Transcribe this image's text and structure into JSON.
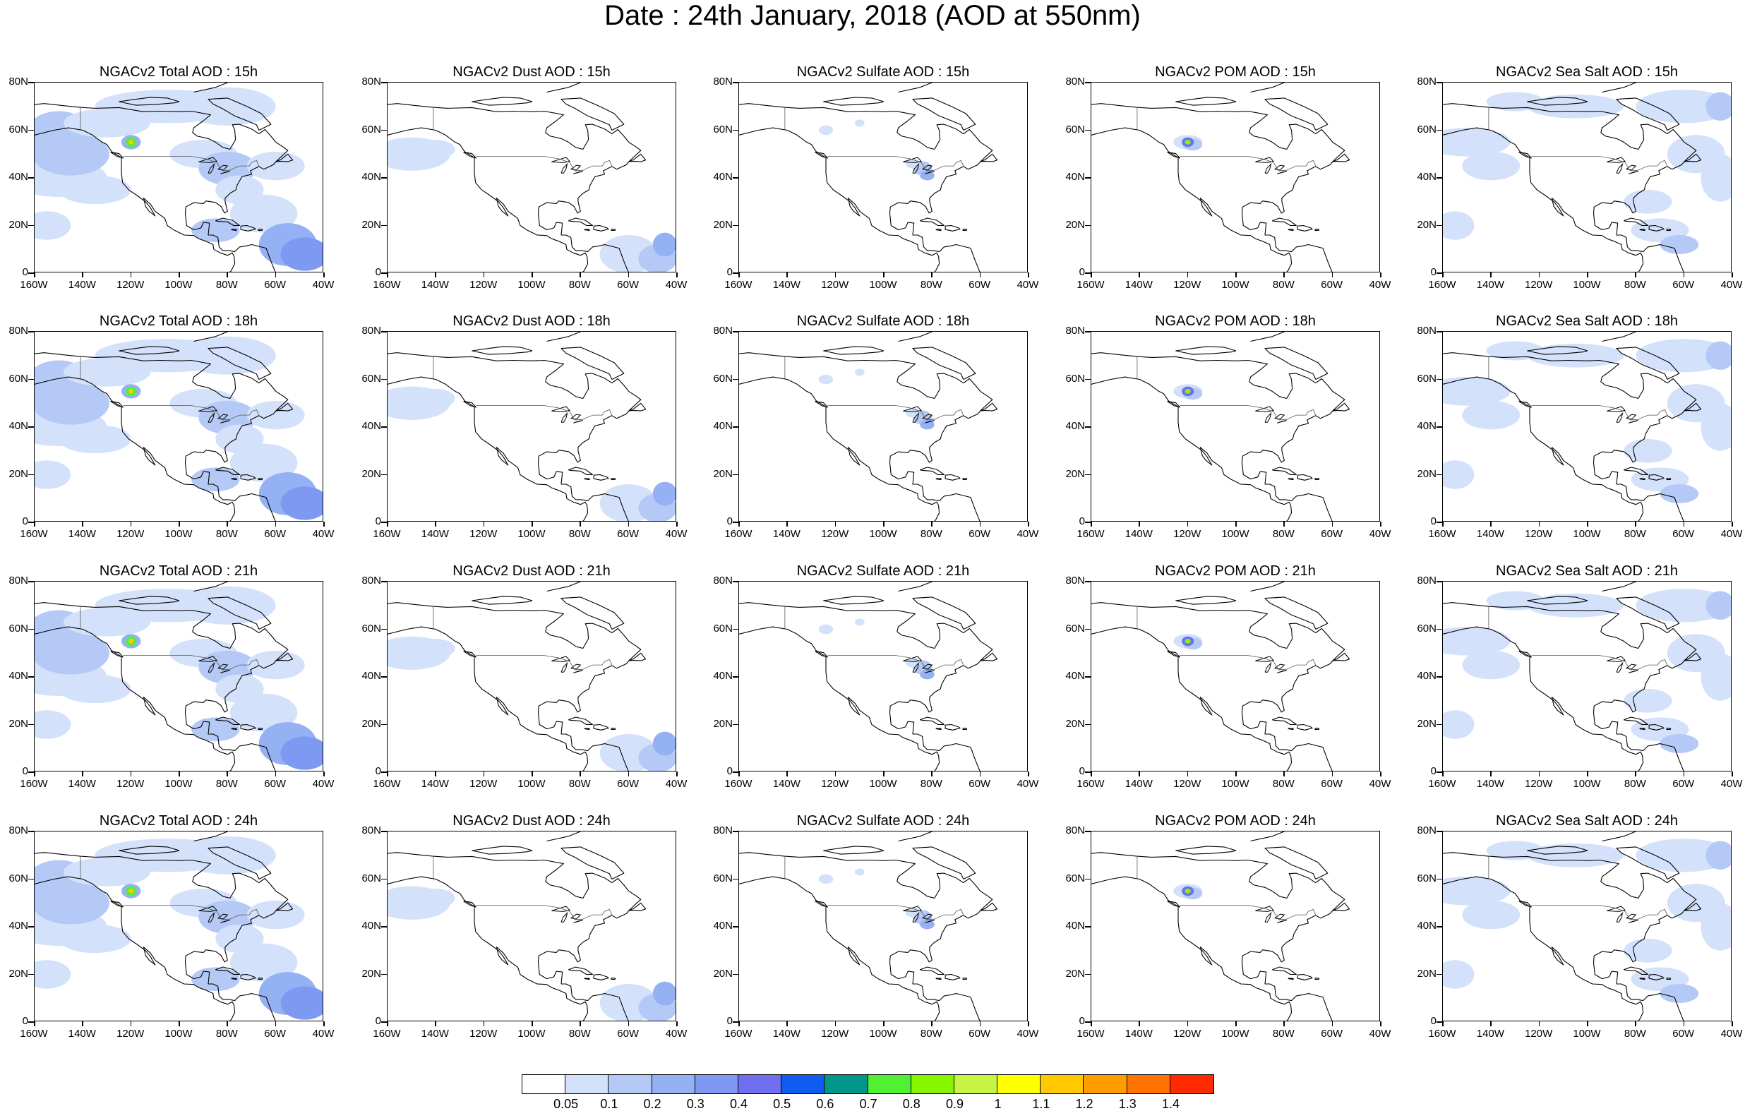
{
  "title": "Date : 24th January, 2018 (AOD at 550nm)",
  "map_extent": {
    "lon": [
      -160,
      -40
    ],
    "lat": [
      0,
      80
    ]
  },
  "y_tick_labels": [
    "80N",
    "60N",
    "40N",
    "20N",
    "0"
  ],
  "x_tick_labels": [
    "160W",
    "140W",
    "120W",
    "100W",
    "80W",
    "60W",
    "40W"
  ],
  "panels": [
    [
      {
        "title": "NGACv2 Total AOD : 15h",
        "field": "total"
      },
      {
        "title": "NGACv2 Dust AOD : 15h",
        "field": "dust"
      },
      {
        "title": "NGACv2 Sulfate AOD : 15h",
        "field": "sulfate"
      },
      {
        "title": "NGACv2 POM AOD : 15h",
        "field": "pom"
      },
      {
        "title": "NGACv2 Sea Salt AOD : 15h",
        "field": "seasalt"
      }
    ],
    [
      {
        "title": "NGACv2 Total AOD : 18h",
        "field": "total"
      },
      {
        "title": "NGACv2 Dust AOD : 18h",
        "field": "dust"
      },
      {
        "title": "NGACv2 Sulfate AOD : 18h",
        "field": "sulfate"
      },
      {
        "title": "NGACv2 POM AOD : 18h",
        "field": "pom"
      },
      {
        "title": "NGACv2 Sea Salt AOD : 18h",
        "field": "seasalt"
      }
    ],
    [
      {
        "title": "NGACv2 Total AOD : 21h",
        "field": "total"
      },
      {
        "title": "NGACv2 Dust AOD : 21h",
        "field": "dust"
      },
      {
        "title": "NGACv2 Sulfate AOD : 21h",
        "field": "sulfate"
      },
      {
        "title": "NGACv2 POM AOD : 21h",
        "field": "pom"
      },
      {
        "title": "NGACv2 Sea Salt AOD : 21h",
        "field": "seasalt"
      }
    ],
    [
      {
        "title": "NGACv2 Total AOD : 24h",
        "field": "total"
      },
      {
        "title": "NGACv2 Dust AOD : 24h",
        "field": "dust"
      },
      {
        "title": "NGACv2 Sulfate AOD : 24h",
        "field": "sulfate"
      },
      {
        "title": "NGACv2 POM AOD : 24h",
        "field": "pom"
      },
      {
        "title": "NGACv2 Sea Salt  AOD : 24h",
        "field": "seasalt"
      }
    ]
  ],
  "colorbar": {
    "labels": [
      "0.05",
      "0.1",
      "0.2",
      "0.3",
      "0.4",
      "0.5",
      "0.6",
      "0.7",
      "0.8",
      "0.9",
      "1",
      "1.1",
      "1.2",
      "1.3",
      "1.4"
    ],
    "colors": [
      "#ffffff",
      "#d4e1fb",
      "#b5c9f7",
      "#94b1f4",
      "#7e99f2",
      "#6f6ff0",
      "#0f5cf2",
      "#00968c",
      "#52f033",
      "#88f500",
      "#c8f545",
      "#ffff00",
      "#ffc800",
      "#ff9c00",
      "#ff7300",
      "#ff2a00"
    ]
  }
}
